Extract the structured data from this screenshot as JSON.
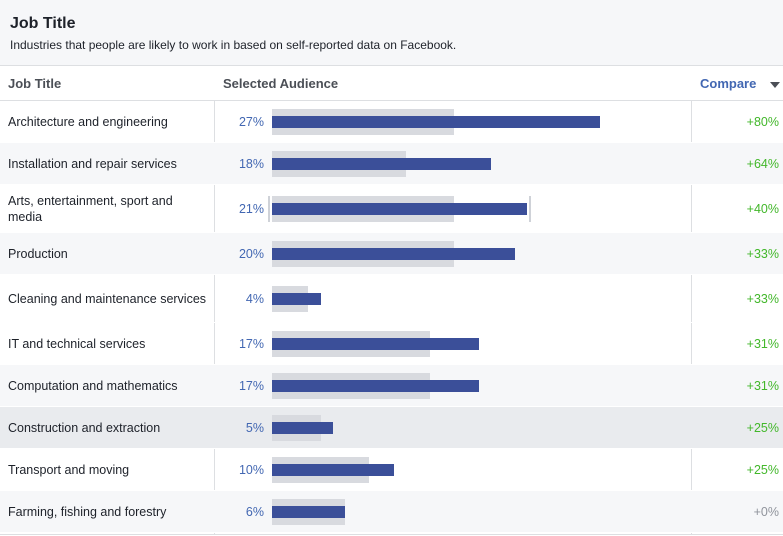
{
  "header": {
    "title": "Job Title",
    "subtitle": "Industries that people are likely to work in based on self-reported data on Facebook."
  },
  "columns": {
    "job": "Job Title",
    "audience": "Selected Audience",
    "compare": "Compare"
  },
  "colors": {
    "bar": "#3b4f99",
    "bar_bg": "#d8dadf",
    "positive": "#42b72a",
    "neutral": "#90949c",
    "link": "#4267b2"
  },
  "bar_scale_max_pct": 33.7,
  "rows": [
    {
      "label": "Architecture and engineering",
      "pct": "27%",
      "value": 27,
      "baseline": 15,
      "compare": "+80%"
    },
    {
      "label": "Installation and repair services",
      "pct": "18%",
      "value": 18,
      "baseline": 11,
      "compare": "+64%"
    },
    {
      "label": "Arts, entertainment, sport and media",
      "pct": "21%",
      "value": 21,
      "baseline": 15,
      "compare": "+40%"
    },
    {
      "label": "Production",
      "pct": "20%",
      "value": 20,
      "baseline": 15,
      "compare": "+33%"
    },
    {
      "label": "Cleaning and maintenance services",
      "pct": "4%",
      "value": 4,
      "baseline": 3,
      "compare": "+33%"
    },
    {
      "label": "IT and technical services",
      "pct": "17%",
      "value": 17,
      "baseline": 13,
      "compare": "+31%"
    },
    {
      "label": "Computation and mathematics",
      "pct": "17%",
      "value": 17,
      "baseline": 13,
      "compare": "+31%"
    },
    {
      "label": "Construction and extraction",
      "pct": "5%",
      "value": 5,
      "baseline": 4,
      "compare": "+25%"
    },
    {
      "label": "Transport and moving",
      "pct": "10%",
      "value": 10,
      "baseline": 8,
      "compare": "+25%"
    },
    {
      "label": "Farming, fishing and forestry",
      "pct": "6%",
      "value": 6,
      "baseline": 6,
      "compare": "+0%"
    }
  ]
}
